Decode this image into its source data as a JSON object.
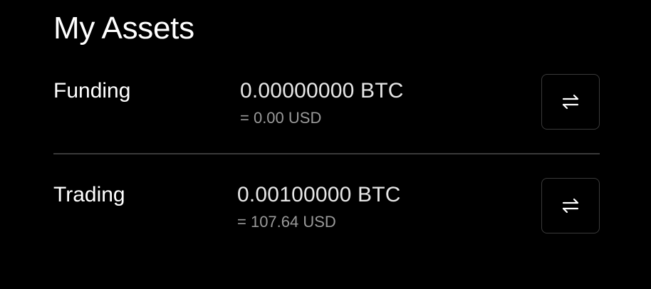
{
  "page": {
    "title": "My Assets"
  },
  "accounts": [
    {
      "name": "Funding",
      "amount": "0.00000000 BTC",
      "fiat": "= 0.00 USD",
      "action_icon": "transfer-arrows-icon"
    },
    {
      "name": "Trading",
      "amount": "0.00100000 BTC",
      "fiat": "= 107.64 USD",
      "action_icon": "transfer-arrows-icon"
    }
  ],
  "colors": {
    "background": "#000000",
    "primary_text": "#ffffff",
    "secondary_text": "#9a9a9a",
    "border": "#3a3a3a"
  }
}
